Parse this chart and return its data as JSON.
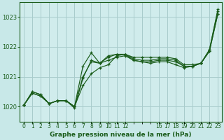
{
  "title": "Graphe pression niveau de la mer (hPa)",
  "bg_color": "#c8e8e8",
  "plot_bg_color": "#d0ecec",
  "grid_color": "#a8cccc",
  "line_color": "#1a5c1a",
  "xlim": [
    -0.5,
    23.5
  ],
  "ylim": [
    1019.5,
    1023.5
  ],
  "yticks": [
    1020,
    1021,
    1022,
    1023
  ],
  "xtick_positions": [
    0,
    1,
    2,
    3,
    4,
    5,
    6,
    7,
    8,
    9,
    10,
    11,
    12,
    16,
    17,
    18,
    19,
    20,
    21,
    22,
    23
  ],
  "xtick_labels": [
    "0",
    "1",
    "2",
    "3",
    "4",
    "5",
    "6",
    "7",
    "8",
    "9",
    "10",
    "11",
    "12",
    "16",
    "17",
    "18",
    "19",
    "20",
    "21",
    "22",
    "23"
  ],
  "series": [
    [
      1020.05,
      1020.5,
      1020.4,
      1020.1,
      1020.2,
      1020.2,
      1020.0,
      1021.35,
      1021.8,
      1021.45,
      1021.7,
      1021.75,
      1021.75,
      1021.65,
      1021.65,
      1021.65,
      1021.65,
      1021.65,
      1021.6,
      1021.4,
      1021.4,
      1021.45,
      1021.9,
      1023.25
    ],
    [
      1020.05,
      1020.5,
      1020.4,
      1020.1,
      1020.2,
      1020.2,
      1020.0,
      1021.0,
      1021.5,
      1021.45,
      1021.65,
      1021.75,
      1021.75,
      1021.6,
      1021.55,
      1021.55,
      1021.6,
      1021.6,
      1021.55,
      1021.35,
      1021.35,
      1021.45,
      1021.85,
      1023.1
    ],
    [
      1020.05,
      1020.45,
      1020.35,
      1020.1,
      1020.2,
      1020.2,
      1020.0,
      1020.7,
      1021.1,
      1021.3,
      1021.4,
      1021.7,
      1021.75,
      1021.55,
      1021.5,
      1021.45,
      1021.5,
      1021.5,
      1021.4,
      1021.3,
      1021.35,
      1021.45,
      1021.9,
      1023.2
    ],
    [
      1020.05,
      1020.45,
      1020.35,
      1020.1,
      1020.2,
      1020.2,
      1019.95,
      1020.95,
      1021.55,
      1021.45,
      1021.55,
      1021.65,
      1021.7,
      1021.55,
      1021.5,
      1021.5,
      1021.55,
      1021.55,
      1021.5,
      1021.35,
      1021.35,
      1021.45,
      1021.85,
      1023.1
    ]
  ]
}
